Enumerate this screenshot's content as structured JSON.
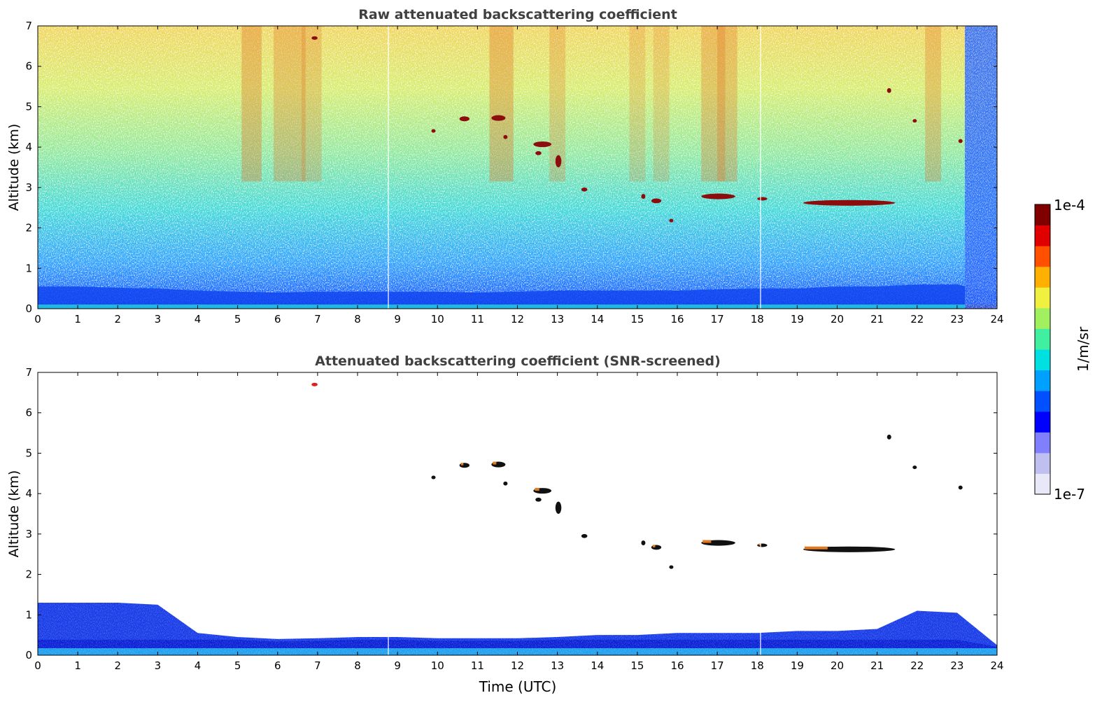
{
  "chart_data": [
    {
      "type": "heatmap",
      "title": "Raw attenuated backscattering coefficient",
      "xlabel": "",
      "ylabel": "Altitude (km)",
      "xlim": [
        0,
        24
      ],
      "ylim": [
        0,
        7
      ],
      "x_ticks": [
        "0",
        "1",
        "2",
        "3",
        "4",
        "5",
        "6",
        "7",
        "8",
        "9",
        "10",
        "11",
        "12",
        "13",
        "14",
        "15",
        "16",
        "17",
        "18",
        "19",
        "20",
        "21",
        "22",
        "23",
        "24"
      ],
      "y_ticks": [
        "0",
        "1",
        "2",
        "3",
        "4",
        "5",
        "6",
        "7"
      ],
      "grid": false,
      "boundary_layer_top_km": [
        0.55,
        0.55,
        0.52,
        0.5,
        0.45,
        0.42,
        0.4,
        0.42,
        0.42,
        0.42,
        0.42,
        0.4,
        0.42,
        0.45,
        0.45,
        0.45,
        0.45,
        0.48,
        0.5,
        0.5,
        0.55,
        0.55,
        0.6,
        0.6,
        0.4
      ],
      "cloud_features": [
        {
          "x_start": 6.85,
          "x_end": 7.0,
          "altitude_km": 6.7,
          "thickness_km": 0.08
        },
        {
          "x_start": 9.85,
          "x_end": 9.95,
          "altitude_km": 4.4,
          "thickness_km": 0.08
        },
        {
          "x_start": 10.55,
          "x_end": 10.8,
          "altitude_km": 4.7,
          "thickness_km": 0.12
        },
        {
          "x_start": 11.35,
          "x_end": 11.7,
          "altitude_km": 4.72,
          "thickness_km": 0.14
        },
        {
          "x_start": 11.65,
          "x_end": 11.75,
          "altitude_km": 4.25,
          "thickness_km": 0.1
        },
        {
          "x_start": 12.4,
          "x_end": 12.85,
          "altitude_km": 4.07,
          "thickness_km": 0.14
        },
        {
          "x_start": 12.45,
          "x_end": 12.6,
          "altitude_km": 3.85,
          "thickness_km": 0.1
        },
        {
          "x_start": 12.95,
          "x_end": 13.1,
          "altitude_km": 3.65,
          "thickness_km": 0.3
        },
        {
          "x_start": 13.6,
          "x_end": 13.75,
          "altitude_km": 2.95,
          "thickness_km": 0.1
        },
        {
          "x_start": 15.1,
          "x_end": 15.2,
          "altitude_km": 2.78,
          "thickness_km": 0.12
        },
        {
          "x_start": 15.35,
          "x_end": 15.6,
          "altitude_km": 2.67,
          "thickness_km": 0.12
        },
        {
          "x_start": 15.8,
          "x_end": 15.9,
          "altitude_km": 2.18,
          "thickness_km": 0.08
        },
        {
          "x_start": 16.6,
          "x_end": 17.45,
          "altitude_km": 2.78,
          "thickness_km": 0.14
        },
        {
          "x_start": 18.0,
          "x_end": 18.25,
          "altitude_km": 2.72,
          "thickness_km": 0.08
        },
        {
          "x_start": 19.15,
          "x_end": 21.45,
          "altitude_km": 2.62,
          "thickness_km": 0.14
        },
        {
          "x_start": 21.25,
          "x_end": 21.35,
          "altitude_km": 5.4,
          "thickness_km": 0.12
        },
        {
          "x_start": 21.9,
          "x_end": 21.98,
          "altitude_km": 4.65,
          "thickness_km": 0.06
        },
        {
          "x_start": 23.05,
          "x_end": 23.12,
          "altitude_km": 4.15,
          "thickness_km": 0.1
        }
      ]
    },
    {
      "type": "heatmap",
      "title": "Attenuated backscattering coefficient (SNR-screened)",
      "xlabel": "Time (UTC)",
      "ylabel": "Altitude (km)",
      "xlim": [
        0,
        24
      ],
      "ylim": [
        0,
        7
      ],
      "x_ticks": [
        "0",
        "1",
        "2",
        "3",
        "4",
        "5",
        "6",
        "7",
        "8",
        "9",
        "10",
        "11",
        "12",
        "13",
        "14",
        "15",
        "16",
        "17",
        "18",
        "19",
        "20",
        "21",
        "22",
        "23",
        "24"
      ],
      "y_ticks": [
        "0",
        "1",
        "2",
        "3",
        "4",
        "5",
        "6",
        "7"
      ],
      "grid": false,
      "aerosol_layer_top_km": [
        1.3,
        1.3,
        1.3,
        1.25,
        0.55,
        0.45,
        0.4,
        0.42,
        0.45,
        0.45,
        0.42,
        0.42,
        0.42,
        0.45,
        0.5,
        0.5,
        0.55,
        0.55,
        0.55,
        0.6,
        0.6,
        0.65,
        1.1,
        1.05,
        0.25
      ]
    }
  ],
  "colorbar": {
    "label": "1/m/sr",
    "max_label": "1e-4",
    "min_label": "1e-7",
    "scale": "log",
    "colormap": "jet",
    "colors": [
      "#e8e8f8",
      "#c0c0f0",
      "#8080ff",
      "#0000ff",
      "#0050ff",
      "#00a0ff",
      "#00e0e0",
      "#40f0a0",
      "#a0f060",
      "#f0f040",
      "#ffb000",
      "#ff5000",
      "#e00000",
      "#800000"
    ]
  }
}
